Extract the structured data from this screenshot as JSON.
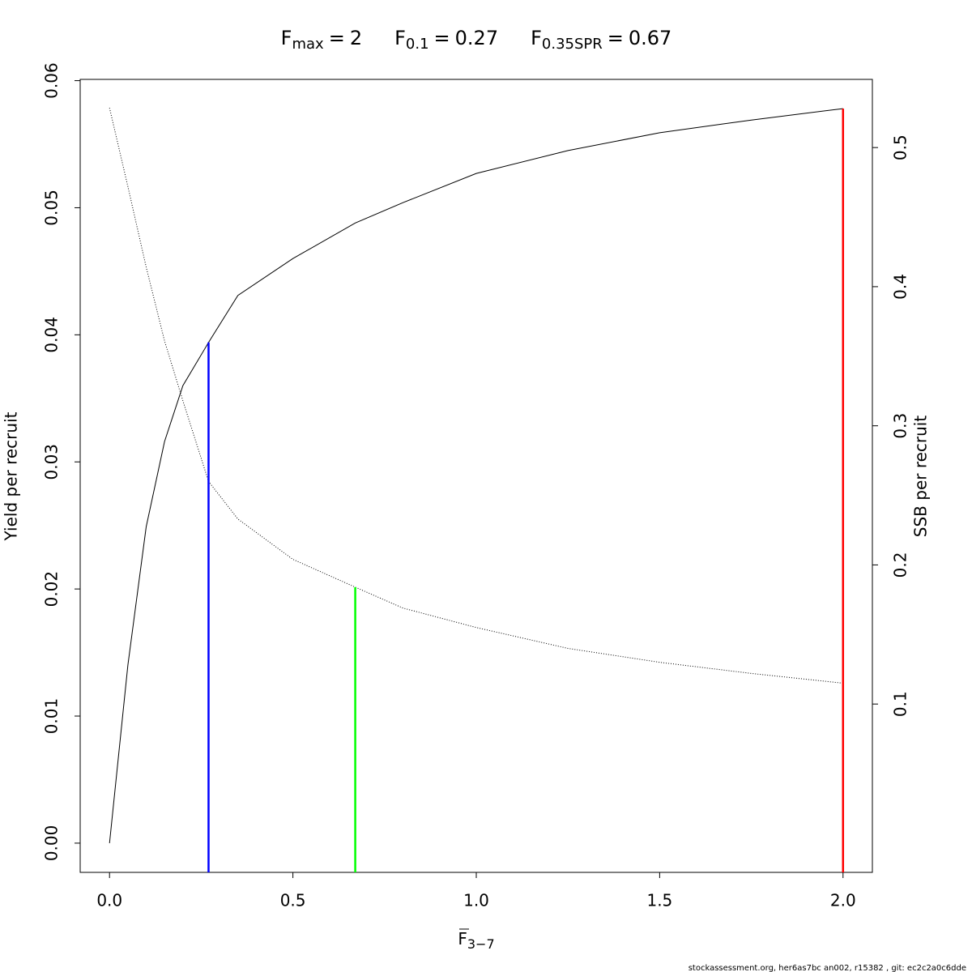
{
  "chart_data": {
    "type": "line",
    "title_items": [
      {
        "symbol": "F",
        "subscript": "max",
        "relation": "=",
        "value": 2
      },
      {
        "symbol": "F",
        "subscript": "0.1",
        "relation": "=",
        "value": 0.27
      },
      {
        "symbol": "F",
        "subscript": "0.35SPR",
        "relation": "=",
        "value": 0.67
      }
    ],
    "xlabel": {
      "symbol": "F",
      "subscript": "3−7"
    },
    "ylabel": "Yield per recruit",
    "y2label": "SSB per recruit",
    "footer": "stockassessment.org, her6as7bc  an002, r15382 , git: ec2c2a0c6dde",
    "x": [
      0,
      0.05,
      0.1,
      0.15,
      0.2,
      0.27,
      0.35,
      0.5,
      0.67,
      0.8,
      1.0,
      1.25,
      1.5,
      1.75,
      2.0
    ],
    "series": [
      {
        "color": "#000000",
        "line_style": "solid",
        "values": [
          0,
          0.014,
          0.0249,
          0.0316,
          0.036,
          0.0394,
          0.0431,
          0.046,
          0.0488,
          0.0504,
          0.0527,
          0.0545,
          0.0559,
          0.0569,
          0.0578
        ]
      },
      {
        "color": "#000000",
        "line_style": "dotted",
        "axis": "y2",
        "values": [
          0.5285,
          0.472,
          0.414,
          0.361,
          0.318,
          0.26,
          0.233,
          0.204,
          0.184,
          0.169,
          0.155,
          0.14,
          0.13,
          0.122,
          0.115
        ]
      }
    ],
    "reference_lines": [
      {
        "x": 0.27,
        "y": 0.0394,
        "axis": "y",
        "color": "#0000ff"
      },
      {
        "x": 0.67,
        "y": 0.184,
        "axis": "y2",
        "color": "#00ff00"
      },
      {
        "x": 2,
        "y": 0.0578,
        "axis": "y",
        "color": "#ff0000"
      }
    ],
    "xlim": [
      -0.08,
      2.08
    ],
    "xticks": [
      {
        "value": 0,
        "label": "0.0"
      },
      0.5,
      {
        "value": 1,
        "label": "1.0"
      },
      1.5,
      {
        "value": 2,
        "label": "2.0"
      }
    ],
    "ylim": [
      -0.0023,
      0.0601
    ],
    "yticks": [
      {
        "value": 0,
        "label": "0.00"
      },
      0.01,
      0.02,
      0.03,
      0.04,
      0.05,
      0.06
    ],
    "y2lim": [
      -0.021,
      0.549
    ],
    "y2ticks": [
      0.1,
      0.2,
      0.3,
      0.4,
      0.5
    ]
  }
}
